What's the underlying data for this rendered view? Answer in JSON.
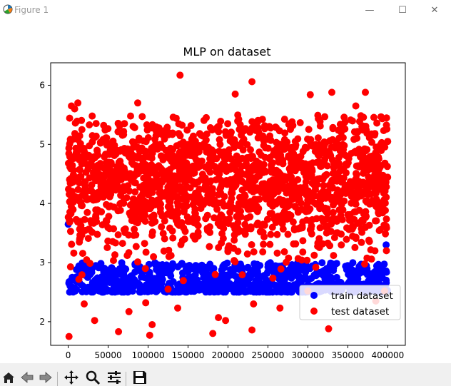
{
  "window": {
    "title": "Figure 1",
    "minimize_glyph": "—",
    "maximize_glyph": "☐",
    "close_glyph": "✕"
  },
  "toolbar": {
    "icons": [
      "home-icon",
      "back-icon",
      "forward-icon",
      "pan-icon",
      "zoom-icon",
      "configure-subplots-icon",
      "save-icon"
    ]
  },
  "chart_data": {
    "type": "scatter",
    "title": "MLP on dataset",
    "xlabel": "",
    "ylabel": "",
    "xlim": [
      -22000,
      422000
    ],
    "ylim": [
      1.6,
      6.38
    ],
    "xticks": [
      0,
      50000,
      100000,
      150000,
      200000,
      250000,
      300000,
      350000,
      400000
    ],
    "yticks": [
      2,
      3,
      4,
      5,
      6
    ],
    "legend": {
      "position": "lower-right",
      "entries": [
        "train dataset",
        "test dataset"
      ]
    },
    "grid": false,
    "series": [
      {
        "name": "train dataset",
        "color": "#0000ff",
        "n_points": 400000,
        "x_range": [
          0,
          400000
        ],
        "y_band": [
          2.5,
          3.0
        ],
        "points": [
          [
            0,
            3.65
          ],
          [
            5000,
            2.75
          ],
          [
            20000,
            2.8
          ],
          [
            50000,
            2.7
          ],
          [
            100000,
            2.6
          ],
          [
            150000,
            2.9
          ],
          [
            200000,
            3.2
          ],
          [
            250000,
            2.85
          ],
          [
            300000,
            2.7
          ],
          [
            350000,
            2.95
          ],
          [
            398000,
            3.3
          ]
        ]
      },
      {
        "name": "test dataset",
        "color": "#ff0000",
        "n_points": 4000,
        "x_range": [
          0,
          400000
        ],
        "y_center": 4.35,
        "y_band": [
          3.0,
          5.5
        ],
        "outliers": [
          [
            1000,
            1.75
          ],
          [
            4000,
            5.65
          ],
          [
            8000,
            5.6
          ],
          [
            12000,
            5.7
          ],
          [
            20000,
            2.3
          ],
          [
            33000,
            2.02
          ],
          [
            63000,
            1.83
          ],
          [
            76000,
            2.17
          ],
          [
            87000,
            5.7
          ],
          [
            97000,
            2.32
          ],
          [
            102000,
            1.77
          ],
          [
            105000,
            1.95
          ],
          [
            125000,
            2.55
          ],
          [
            137000,
            2.23
          ],
          [
            140000,
            6.17
          ],
          [
            181000,
            1.8
          ],
          [
            188000,
            2.07
          ],
          [
            197000,
            2.02
          ],
          [
            209000,
            5.85
          ],
          [
            230000,
            6.06
          ],
          [
            230000,
            1.86
          ],
          [
            232000,
            2.3
          ],
          [
            265000,
            2.23
          ],
          [
            300000,
            2.52
          ],
          [
            303000,
            5.84
          ],
          [
            326000,
            1.88
          ],
          [
            330000,
            5.88
          ],
          [
            360000,
            5.65
          ],
          [
            372000,
            5.88
          ],
          [
            385000,
            2.35
          ],
          [
            396000,
            2.52
          ]
        ]
      }
    ]
  }
}
